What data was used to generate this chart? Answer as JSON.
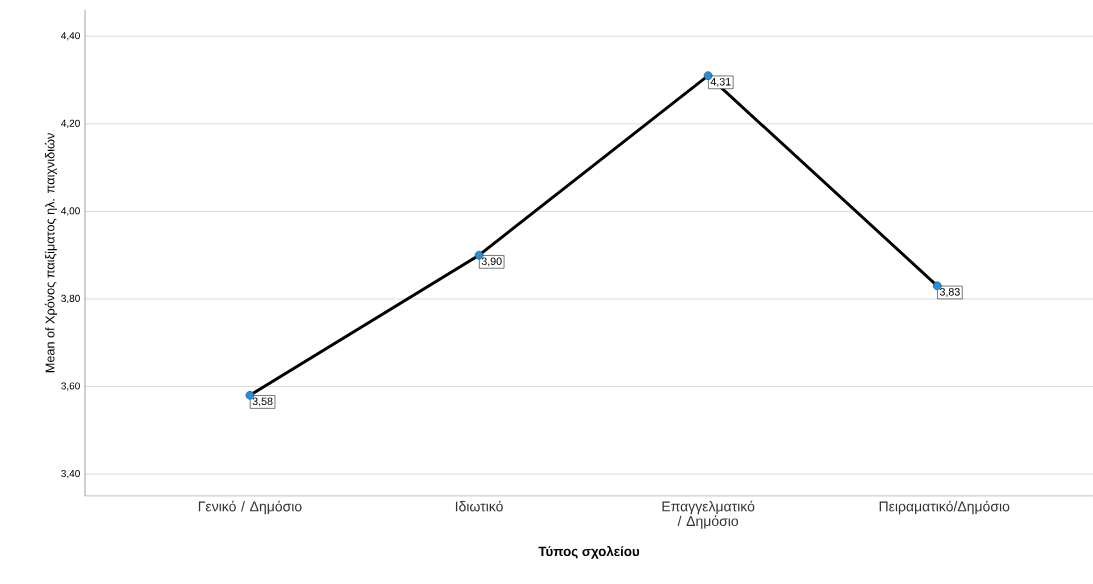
{
  "chart_data": {
    "type": "line",
    "xlabel": "Τύπος σχολείου",
    "ylabel": "Mean of Χρόνος παιξίματος ηλ. παιχνιδιών",
    "categories": [
      "Γενικό / Δημόσιο",
      "Ιδιωτικό",
      "Επαγγελματικό / Δημόσιο",
      "Πειραματικό/Δημόσιο"
    ],
    "values": [
      3.58,
      3.9,
      4.31,
      3.83
    ],
    "value_labels": [
      "3,58",
      "3,90",
      "4,31",
      "3,83"
    ],
    "color": "#000000",
    "marker": "circle",
    "grid": "y",
    "ylim": [
      3.35,
      4.46
    ],
    "yticks": [
      {
        "value": 3.4,
        "label": "3,40"
      },
      {
        "value": 3.6,
        "label": "3,60"
      },
      {
        "value": 3.8,
        "label": "3,80"
      },
      {
        "value": 4.0,
        "label": "4,00"
      },
      {
        "value": 4.2,
        "label": "4,20"
      },
      {
        "value": 4.4,
        "label": "4,40"
      }
    ]
  }
}
